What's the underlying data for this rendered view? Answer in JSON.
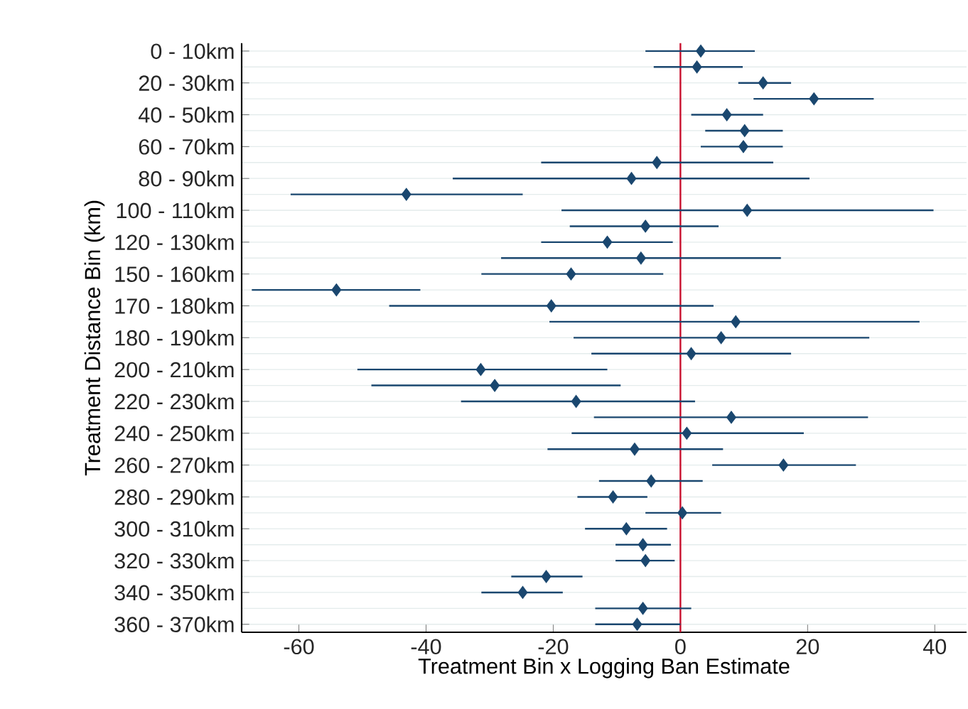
{
  "chart_data": {
    "type": "scatter",
    "orientation": "horizontal",
    "xlabel": "Treatment Bin x Logging Ban Estimate",
    "ylabel": "Treatment Distance Bin (km)",
    "categories": [
      "0 - 10km",
      null,
      "20 - 30km",
      null,
      "40 - 50km",
      null,
      "60 - 70km",
      null,
      "80 - 90km",
      null,
      "100 - 110km",
      null,
      "120 - 130km",
      null,
      "150 - 160km",
      null,
      "170 - 180km",
      null,
      "180 - 190km",
      null,
      "200 - 210km",
      null,
      "220 - 230km",
      null,
      "240 - 250km",
      null,
      "260 - 270km",
      null,
      "280 - 290km",
      null,
      "300 - 310km",
      null,
      "320 - 330km",
      null,
      "340 - 350km",
      null,
      "360 - 370km"
    ],
    "values": [
      3.2,
      2.6,
      13.0,
      21.0,
      7.3,
      10.1,
      9.9,
      -3.7,
      -7.7,
      -43.1,
      10.5,
      -5.5,
      -11.5,
      -6.2,
      -17.2,
      -54.1,
      -20.3,
      8.7,
      6.4,
      1.7,
      -31.4,
      -29.2,
      -16.4,
      8.0,
      1.0,
      -7.2,
      16.2,
      -4.6,
      -10.6,
      0.3,
      -8.5,
      -5.9,
      -5.5,
      -21.1,
      -24.8,
      -5.9,
      -6.8
    ],
    "errors": [
      [
        -5.5,
        11.7
      ],
      [
        -4.2,
        9.8
      ],
      [
        9.1,
        17.4
      ],
      [
        11.5,
        30.4
      ],
      [
        1.7,
        13.0
      ],
      [
        3.9,
        16.1
      ],
      [
        3.2,
        16.1
      ],
      [
        -21.9,
        14.6
      ],
      [
        -35.8,
        20.3
      ],
      [
        -61.3,
        -24.8
      ],
      [
        -18.7,
        39.8
      ],
      [
        -17.4,
        6.0
      ],
      [
        -21.9,
        -1.2
      ],
      [
        -28.2,
        15.8
      ],
      [
        -31.3,
        -2.7
      ],
      [
        -67.4,
        -40.9
      ],
      [
        -45.8,
        5.2
      ],
      [
        -20.6,
        37.6
      ],
      [
        -16.8,
        29.7
      ],
      [
        -14.0,
        17.4
      ],
      [
        -50.8,
        -11.5
      ],
      [
        -48.6,
        -9.4
      ],
      [
        -34.5,
        2.3
      ],
      [
        -13.6,
        29.5
      ],
      [
        -17.1,
        19.4
      ],
      [
        -20.9,
        6.7
      ],
      [
        5.0,
        27.6
      ],
      [
        -12.8,
        3.5
      ],
      [
        -16.2,
        -5.2
      ],
      [
        -5.5,
        6.4
      ],
      [
        -15.0,
        -2.1
      ],
      [
        -10.2,
        -1.5
      ],
      [
        -10.2,
        -0.9
      ],
      [
        -26.6,
        -15.4
      ],
      [
        -31.3,
        -18.5
      ],
      [
        -13.4,
        1.7
      ],
      [
        -13.4,
        0.0
      ]
    ],
    "color": "#1a476f",
    "marker": "diamond",
    "grid": "y",
    "xlim": [
      -69,
      45
    ],
    "xticks": [
      -60,
      -40,
      -20,
      0,
      20,
      40
    ],
    "ref_lines": [
      {
        "axis": "x",
        "value": 0,
        "color": "#c8102e"
      }
    ]
  }
}
